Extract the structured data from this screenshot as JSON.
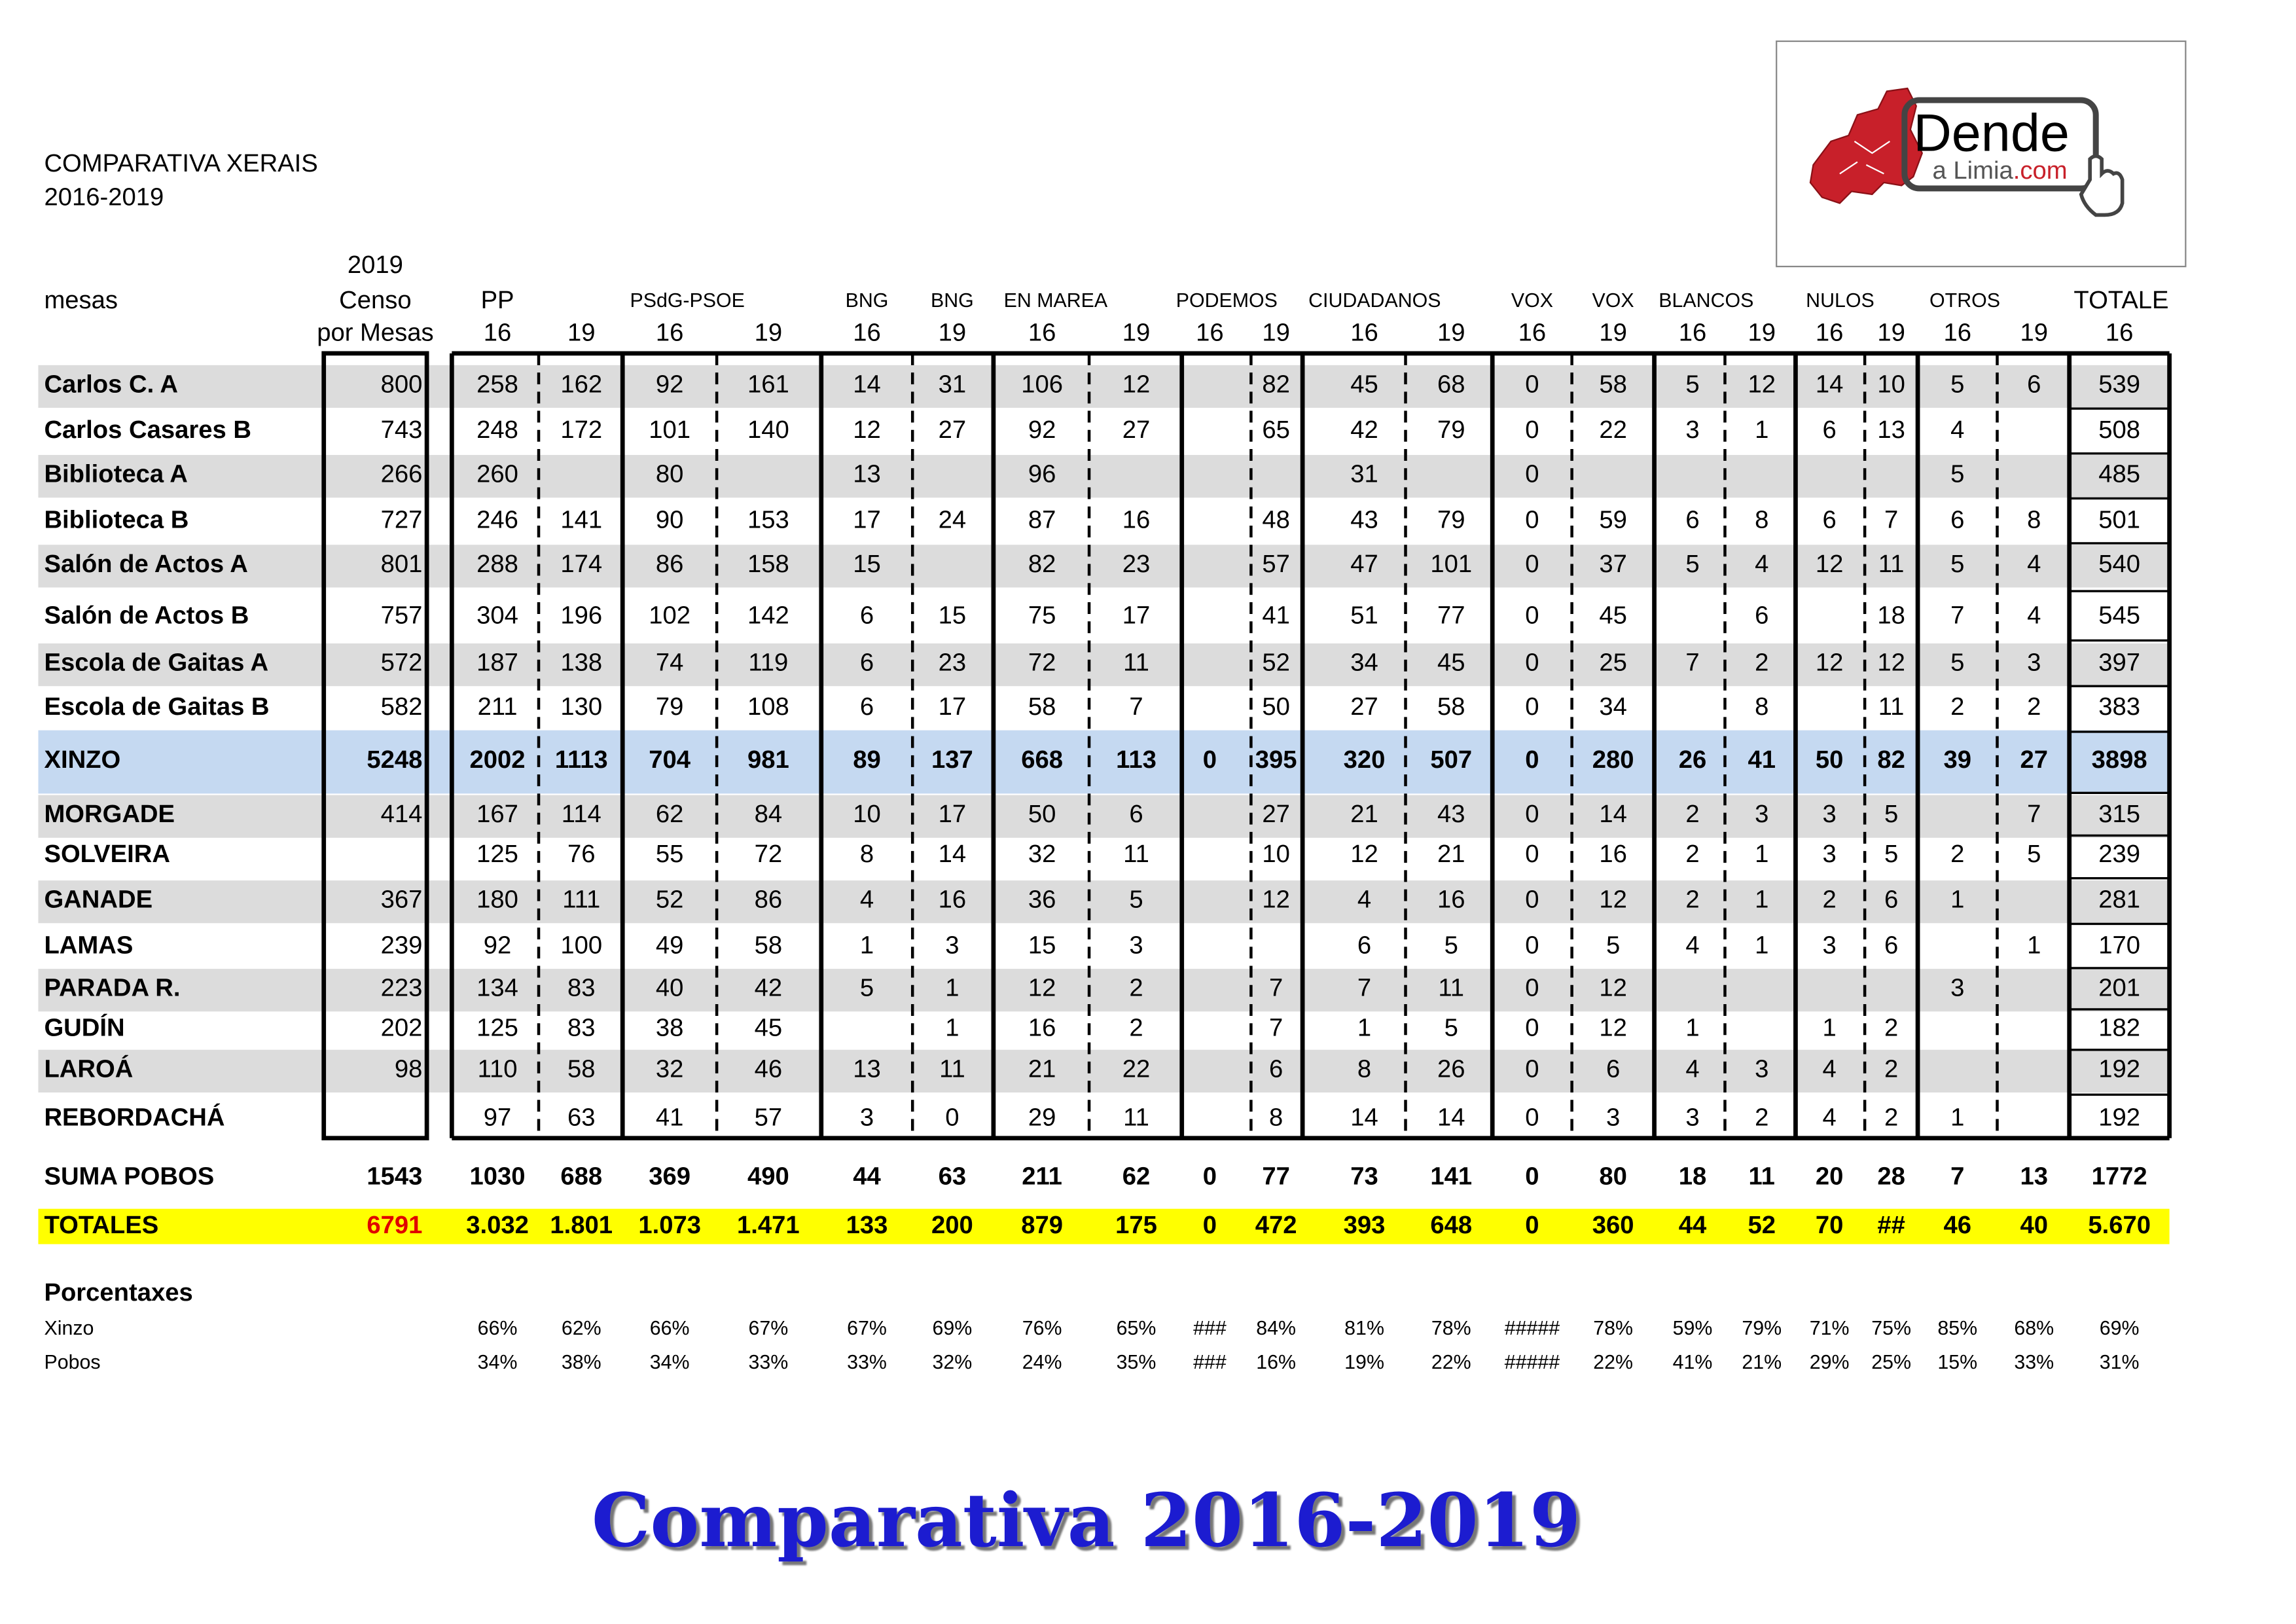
{
  "header": {
    "title": "COMPARATIVA  XERAIS",
    "years": "2016-2019"
  },
  "table": {
    "header": {
      "censo_year": "2019",
      "mesas": "mesas",
      "censo": "Censo",
      "censo_sub": "por Mesas",
      "parties": [
        "PP",
        "PSdG-PSOE",
        "BNG",
        "BNG",
        "EN MAREA",
        "PODEMOS",
        "CIUDADANOS",
        "VOX",
        "VOX",
        "BLANCOS",
        "NULOS",
        "OTROS",
        "TOTALE"
      ],
      "years": [
        16,
        19,
        16,
        19,
        16,
        19,
        16,
        19,
        16,
        19,
        16,
        19,
        16,
        19,
        16,
        19,
        16,
        19,
        16,
        19,
        16
      ]
    },
    "rows": [
      {
        "name": "Carlos C. A",
        "censo": 800,
        "values": [
          258,
          162,
          92,
          161,
          14,
          31,
          106,
          12,
          null,
          82,
          45,
          68,
          0,
          58,
          5,
          12,
          14,
          10,
          5,
          6,
          539
        ]
      },
      {
        "name": "Carlos Casares B",
        "censo": 743,
        "values": [
          248,
          172,
          101,
          140,
          12,
          27,
          92,
          27,
          null,
          65,
          42,
          79,
          0,
          22,
          3,
          1,
          6,
          13,
          4,
          null,
          508
        ]
      },
      {
        "name": "Biblioteca   A",
        "censo": 266,
        "values": [
          260,
          null,
          80,
          null,
          13,
          null,
          96,
          null,
          null,
          null,
          31,
          null,
          0,
          null,
          null,
          null,
          null,
          null,
          5,
          null,
          485
        ]
      },
      {
        "name": "Biblioteca   B",
        "censo": 727,
        "values": [
          246,
          141,
          90,
          153,
          17,
          24,
          87,
          16,
          null,
          48,
          43,
          79,
          0,
          59,
          6,
          8,
          6,
          7,
          6,
          8,
          501
        ]
      },
      {
        "name": "Salón de Actos   A",
        "censo": 801,
        "values": [
          288,
          174,
          86,
          158,
          15,
          null,
          82,
          23,
          null,
          57,
          47,
          101,
          0,
          37,
          5,
          4,
          12,
          11,
          5,
          4,
          540
        ]
      },
      {
        "name": "Salón de Actos   B",
        "censo": 757,
        "values": [
          304,
          196,
          102,
          142,
          6,
          15,
          75,
          17,
          null,
          41,
          51,
          77,
          0,
          45,
          null,
          6,
          null,
          18,
          7,
          4,
          545
        ]
      },
      {
        "name": "Escola de Gaitas   A",
        "censo": 572,
        "values": [
          187,
          138,
          74,
          119,
          6,
          23,
          72,
          11,
          null,
          52,
          34,
          45,
          0,
          25,
          7,
          2,
          12,
          12,
          5,
          3,
          397
        ]
      },
      {
        "name": "Escola de Gaitas   B",
        "censo": 582,
        "values": [
          211,
          130,
          79,
          108,
          6,
          17,
          58,
          7,
          null,
          50,
          27,
          58,
          0,
          34,
          null,
          8,
          null,
          11,
          2,
          2,
          383
        ]
      },
      {
        "name": "XINZO",
        "censo": 5248,
        "values": [
          2002,
          1113,
          704,
          981,
          89,
          137,
          668,
          113,
          0,
          395,
          320,
          507,
          0,
          280,
          26,
          41,
          50,
          82,
          39,
          27,
          3898
        ]
      },
      {
        "name": "MORGADE",
        "censo": 414,
        "values": [
          167,
          114,
          62,
          84,
          10,
          17,
          50,
          6,
          null,
          27,
          21,
          43,
          0,
          14,
          2,
          3,
          3,
          5,
          null,
          7,
          315
        ]
      },
      {
        "name": "SOLVEIRA",
        "censo": null,
        "values": [
          125,
          76,
          55,
          72,
          8,
          14,
          32,
          11,
          null,
          10,
          12,
          21,
          0,
          16,
          2,
          1,
          3,
          5,
          2,
          5,
          239
        ]
      },
      {
        "name": "GANADE",
        "censo": 367,
        "values": [
          180,
          111,
          52,
          86,
          4,
          16,
          36,
          5,
          null,
          12,
          4,
          16,
          0,
          12,
          2,
          1,
          2,
          6,
          1,
          null,
          281
        ]
      },
      {
        "name": "LAMAS",
        "censo": 239,
        "values": [
          92,
          100,
          49,
          58,
          1,
          3,
          15,
          3,
          null,
          null,
          6,
          5,
          0,
          5,
          4,
          1,
          3,
          6,
          null,
          1,
          170
        ]
      },
      {
        "name": "PARADA R.",
        "censo": 223,
        "values": [
          134,
          83,
          40,
          42,
          5,
          1,
          12,
          2,
          null,
          7,
          7,
          11,
          0,
          12,
          null,
          null,
          null,
          null,
          3,
          null,
          201
        ]
      },
      {
        "name": "GUDÍN",
        "censo": 202,
        "values": [
          125,
          83,
          38,
          45,
          null,
          1,
          16,
          2,
          null,
          7,
          1,
          5,
          0,
          12,
          1,
          null,
          1,
          2,
          null,
          null,
          182
        ]
      },
      {
        "name": "LAROÁ",
        "censo": 98,
        "values": [
          110,
          58,
          32,
          46,
          13,
          11,
          21,
          22,
          null,
          6,
          8,
          26,
          0,
          6,
          4,
          3,
          4,
          2,
          null,
          null,
          192
        ]
      },
      {
        "name": "REBORDACHÁ",
        "censo": null,
        "values": [
          97,
          63,
          41,
          57,
          3,
          0,
          29,
          11,
          null,
          8,
          14,
          14,
          0,
          3,
          3,
          2,
          4,
          2,
          1,
          null,
          192
        ]
      }
    ],
    "suma": {
      "name": "SUMA POBOS",
      "censo": 1543,
      "values": [
        1030,
        688,
        369,
        490,
        44,
        63,
        211,
        62,
        0,
        77,
        73,
        141,
        0,
        80,
        18,
        11,
        20,
        28,
        7,
        13,
        1772
      ]
    },
    "totales": {
      "name": "TOTALES",
      "censo": 6791,
      "values": [
        "3.032",
        "1.801",
        "1.073",
        "1.471",
        133,
        200,
        879,
        175,
        0,
        472,
        393,
        648,
        0,
        360,
        44,
        52,
        70,
        "##",
        46,
        40,
        "5.670"
      ]
    }
  },
  "percentages": {
    "title": "Porcentaxes",
    "rows": [
      {
        "name": "Xinzo",
        "values": [
          "66%",
          "62%",
          "66%",
          "67%",
          "67%",
          "69%",
          "76%",
          "65%",
          "###",
          "84%",
          "81%",
          "78%",
          "#####",
          "78%",
          "59%",
          "79%",
          "71%",
          "75%",
          "85%",
          "68%",
          "69%"
        ]
      },
      {
        "name": "Pobos",
        "values": [
          "34%",
          "38%",
          "34%",
          "33%",
          "33%",
          "32%",
          "24%",
          "35%",
          "###",
          "16%",
          "19%",
          "22%",
          "#####",
          "22%",
          "41%",
          "21%",
          "29%",
          "25%",
          "15%",
          "33%",
          "31%"
        ]
      }
    ]
  },
  "logo": {
    "brand": "Dende",
    "sub": "a Limia",
    "domain": ".com"
  },
  "footer": {
    "title": "Comparativa 2016-2019"
  }
}
